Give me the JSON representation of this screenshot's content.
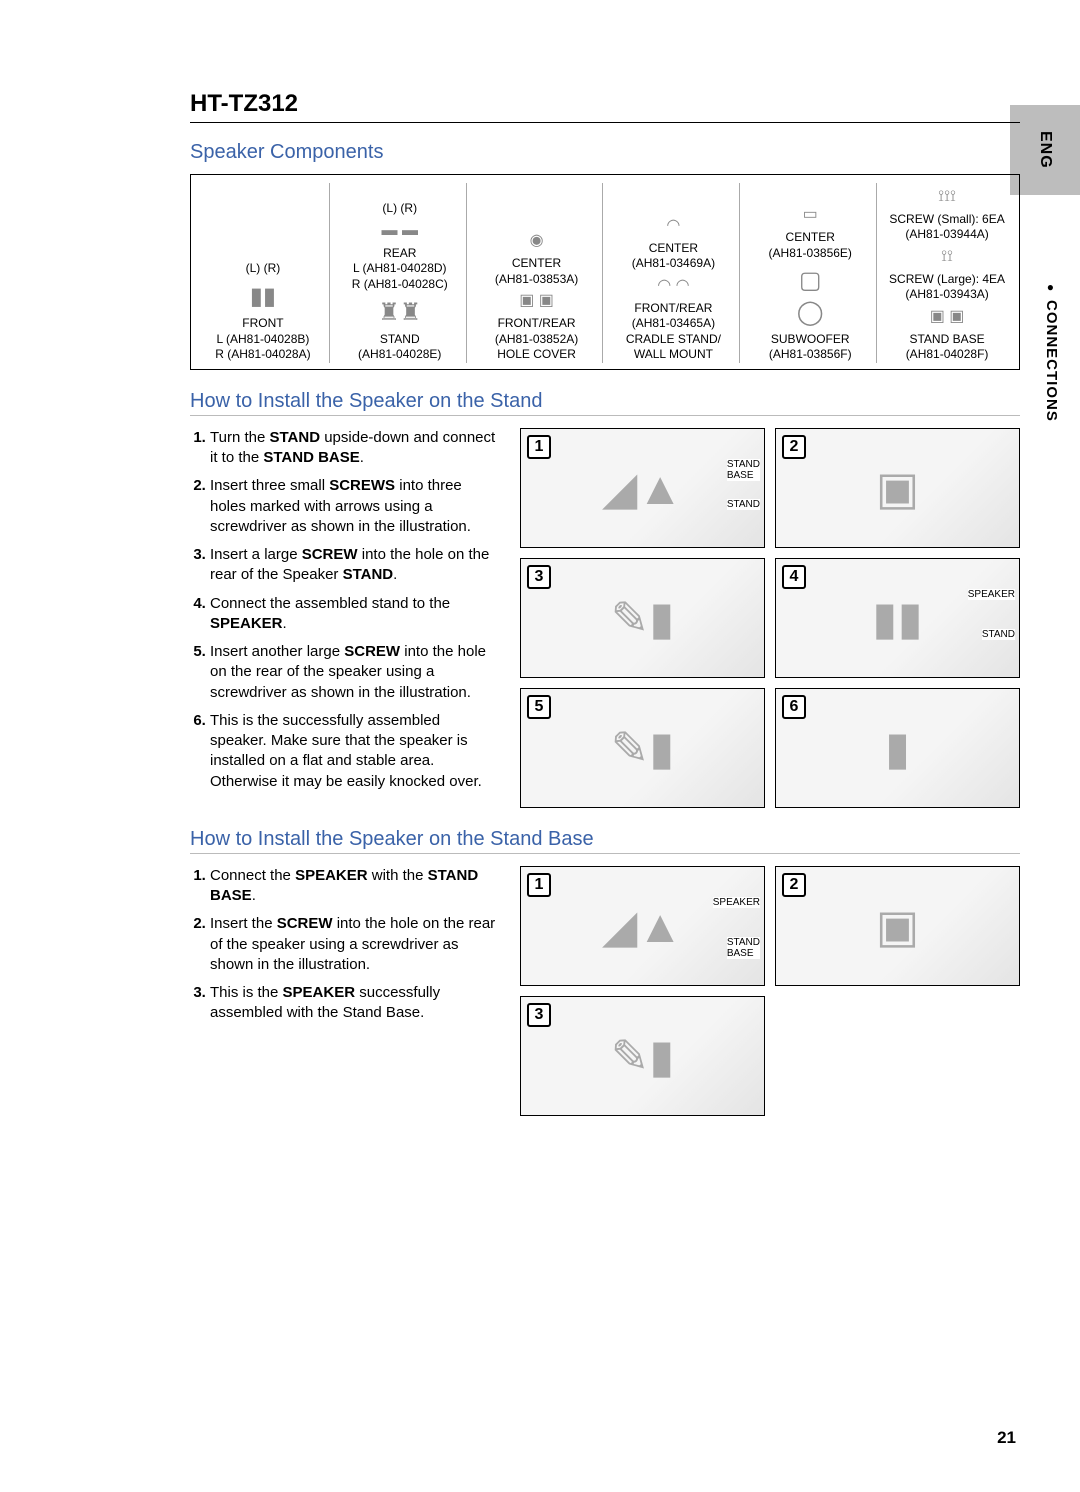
{
  "sideTab": "ENG",
  "sideSection": "CONNECTIONS",
  "model": "HT-TZ312",
  "sections": {
    "components": "Speaker Components",
    "installStand": "How to Install the Speaker on the Stand",
    "installBase": "How to Install the Speaker on the Stand Base"
  },
  "components": {
    "col1": {
      "lr": "(L) (R)",
      "name": "FRONT",
      "parts": "L (AH81-04028B)\nR (AH81-04028A)"
    },
    "col2": {
      "lr": "(L)   (R)",
      "rear": "REAR",
      "rearParts": "L (AH81-04028D)\nR (AH81-04028C)",
      "stand": "STAND",
      "standPart": "(AH81-04028E)"
    },
    "col3": {
      "center": "CENTER",
      "centerPart": "(AH81-03853A)",
      "fr": "FRONT/REAR",
      "frPart": "(AH81-03852A)",
      "bottom": "HOLE COVER"
    },
    "col4": {
      "center": "CENTER",
      "centerPart": "(AH81-03469A)",
      "fr": "FRONT/REAR",
      "frPart": "(AH81-03465A)",
      "bottom": "CRADLE STAND/\nWALL MOUNT"
    },
    "col5": {
      "center": "CENTER",
      "centerPart": "(AH81-03856E)",
      "sub": "SUBWOOFER",
      "subPart": "(AH81-03856F)"
    },
    "col6": {
      "screwS": "SCREW (Small): 6EA",
      "screwSPart": "(AH81-03944A)",
      "screwL": "SCREW (Large): 4EA",
      "screwLPart": "(AH81-03943A)",
      "base": "STAND BASE",
      "basePart": "(AH81-04028F)"
    }
  },
  "standSteps": [
    {
      "pre": "Turn the ",
      "b1": "STAND",
      "mid": " upside-down and connect it to the ",
      "b2": "STAND BASE",
      "post": "."
    },
    {
      "pre": "Insert three small ",
      "b1": "SCREWS",
      "mid": " into three holes marked with arrows using a screwdriver as shown in the illustration.",
      "b2": "",
      "post": ""
    },
    {
      "pre": "Insert a large ",
      "b1": "SCREW",
      "mid": " into the hole on the rear of the Speaker ",
      "b2": "STAND",
      "post": "."
    },
    {
      "pre": "Connect the assembled stand to the ",
      "b1": "SPEAKER",
      "mid": ".",
      "b2": "",
      "post": ""
    },
    {
      "pre": "Insert another large ",
      "b1": "SCREW",
      "mid": " into the hole on the rear of the speaker using a screwdriver as shown in the illustration.",
      "b2": "",
      "post": ""
    },
    {
      "pre": "This is the successfully assembled speaker. Make sure that the speaker is installed on a flat and stable area. Otherwise it may be easily knocked over.",
      "b1": "",
      "mid": "",
      "b2": "",
      "post": ""
    }
  ],
  "baseSteps": [
    {
      "pre": "Connect the ",
      "b1": "SPEAKER",
      "mid": " with the ",
      "b2": "STAND BASE",
      "post": "."
    },
    {
      "pre": "Insert the ",
      "b1": "SCREW",
      "mid": " into the hole on the rear of the speaker using a screwdriver as shown in the illustration.",
      "b2": "",
      "post": ""
    },
    {
      "pre": "This is the ",
      "b1": "SPEAKER",
      "mid": " successfully assembled with the Stand Base.",
      "b2": "",
      "post": ""
    }
  ],
  "diagramLabels": {
    "stand1a": "STAND\nBASE",
    "stand1b": "STAND",
    "stand4a": "SPEAKER",
    "stand4b": "STAND",
    "base1a": "SPEAKER",
    "base1b": "STAND\nBASE"
  },
  "standStepCount": 6,
  "baseStepCount": 3,
  "pageNumber": "21",
  "colors": {
    "accent": "#3a62a8",
    "tabBg": "#bdbdbd"
  }
}
